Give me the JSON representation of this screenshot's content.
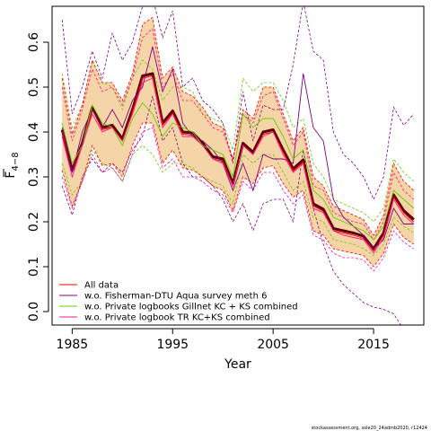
{
  "chart_data": {
    "type": "line",
    "xlabel": "Year",
    "ylabel_main": "F",
    "ylabel_sub": "4−8",
    "xlim": [
      1983,
      2020
    ],
    "ylim": [
      -0.03,
      0.68
    ],
    "xticks": [
      1985,
      1995,
      2005,
      2015
    ],
    "yticks": [
      0.0,
      0.1,
      0.2,
      0.3,
      0.4,
      0.5,
      0.6
    ],
    "ytick_labels": [
      "0.0",
      "0.1",
      "0.2",
      "0.3",
      "0.4",
      "0.5",
      "0.6"
    ],
    "x": [
      1984,
      1985,
      1986,
      1987,
      1988,
      1989,
      1990,
      1991,
      1992,
      1993,
      1994,
      1995,
      1996,
      1997,
      1998,
      1999,
      2000,
      2001,
      2002,
      2003,
      2004,
      2005,
      2006,
      2007,
      2008,
      2009,
      2010,
      2011,
      2012,
      2013,
      2014,
      2015,
      2016,
      2017,
      2018,
      2019
    ],
    "estimate": [
      0.405,
      0.315,
      0.375,
      0.455,
      0.41,
      0.415,
      0.385,
      0.45,
      0.525,
      0.53,
      0.42,
      0.447,
      0.4,
      0.398,
      0.375,
      0.345,
      0.34,
      0.285,
      0.375,
      0.355,
      0.4,
      0.405,
      0.36,
      0.318,
      0.338,
      0.24,
      0.228,
      0.185,
      0.18,
      0.175,
      0.168,
      0.14,
      0.175,
      0.26,
      0.225,
      0.205
    ],
    "ci_upper": [
      0.52,
      0.395,
      0.46,
      0.56,
      0.51,
      0.51,
      0.47,
      0.53,
      0.64,
      0.655,
      0.52,
      0.545,
      0.49,
      0.48,
      0.455,
      0.42,
      0.41,
      0.34,
      0.45,
      0.43,
      0.5,
      0.5,
      0.44,
      0.38,
      0.41,
      0.3,
      0.28,
      0.235,
      0.225,
      0.215,
      0.205,
      0.17,
      0.215,
      0.33,
      0.29,
      0.27
    ],
    "ci_lower": [
      0.315,
      0.235,
      0.29,
      0.37,
      0.325,
      0.33,
      0.3,
      0.37,
      0.42,
      0.42,
      0.33,
      0.36,
      0.32,
      0.315,
      0.3,
      0.28,
      0.27,
      0.225,
      0.3,
      0.285,
      0.32,
      0.325,
      0.285,
      0.255,
      0.27,
      0.18,
      0.17,
      0.14,
      0.135,
      0.13,
      0.125,
      0.1,
      0.13,
      0.195,
      0.165,
      0.15
    ],
    "series": [
      {
        "name": "All data",
        "color": "#ff0000",
        "values": [
          0.4,
          0.312,
          0.37,
          0.45,
          0.405,
          0.41,
          0.38,
          0.445,
          0.52,
          0.525,
          0.415,
          0.442,
          0.395,
          0.393,
          0.37,
          0.34,
          0.335,
          0.28,
          0.37,
          0.35,
          0.395,
          0.4,
          0.355,
          0.313,
          0.333,
          0.235,
          0.223,
          0.18,
          0.175,
          0.17,
          0.163,
          0.135,
          0.17,
          0.255,
          0.22,
          0.2
        ]
      },
      {
        "name": "w.o. Fisherman-DTU Aqua survey meth 6",
        "color": "#800080",
        "values": [
          0.41,
          0.31,
          0.4,
          0.45,
          0.41,
          0.45,
          0.41,
          0.47,
          0.5,
          0.59,
          0.49,
          0.54,
          0.42,
          0.39,
          0.38,
          0.36,
          0.33,
          0.27,
          0.33,
          0.27,
          0.35,
          0.34,
          0.34,
          0.33,
          0.53,
          0.41,
          0.38,
          0.25,
          0.21,
          0.19,
          0.17,
          0.14,
          0.16,
          0.23,
          0.195,
          0.195
        ]
      },
      {
        "name": "w.o. Private logbooks Gillnet KC + KS combined",
        "color": "#66cc00",
        "values": [
          0.42,
          0.33,
          0.37,
          0.46,
          0.42,
          0.41,
          0.37,
          0.43,
          0.465,
          0.44,
          0.39,
          0.42,
          0.41,
          0.4,
          0.37,
          0.36,
          0.35,
          0.3,
          0.44,
          0.41,
          0.43,
          0.43,
          0.39,
          0.34,
          0.36,
          0.27,
          0.25,
          0.21,
          0.2,
          0.19,
          0.18,
          0.16,
          0.19,
          0.27,
          0.25,
          0.23
        ]
      },
      {
        "name": "w.o. Private logbook TR KC+KS combined",
        "color": "#ff1493",
        "values": [
          0.39,
          0.3,
          0.37,
          0.44,
          0.4,
          0.41,
          0.38,
          0.44,
          0.51,
          0.52,
          0.41,
          0.44,
          0.39,
          0.39,
          0.37,
          0.34,
          0.33,
          0.28,
          0.37,
          0.35,
          0.39,
          0.4,
          0.35,
          0.31,
          0.33,
          0.23,
          0.22,
          0.18,
          0.17,
          0.165,
          0.16,
          0.13,
          0.165,
          0.25,
          0.215,
          0.195
        ]
      }
    ],
    "bands": [
      {
        "series": 1,
        "color": "#800080",
        "upper": [
          0.65,
          0.44,
          0.5,
          0.58,
          0.52,
          0.62,
          0.56,
          0.6,
          0.68,
          0.7,
          0.61,
          0.67,
          0.5,
          0.52,
          0.47,
          0.45,
          0.42,
          0.33,
          0.49,
          0.38,
          0.46,
          0.45,
          0.45,
          0.55,
          0.69,
          0.58,
          0.56,
          0.4,
          0.35,
          0.33,
          0.3,
          0.25,
          0.3,
          0.455,
          0.415,
          0.44
        ],
        "lower": [
          0.28,
          0.215,
          0.3,
          0.34,
          0.31,
          0.33,
          0.31,
          0.36,
          0.39,
          0.48,
          0.38,
          0.41,
          0.33,
          0.3,
          0.3,
          0.28,
          0.25,
          0.2,
          0.24,
          0.18,
          0.24,
          0.25,
          0.25,
          0.2,
          0.36,
          0.23,
          0.15,
          0.09,
          0.06,
          0.04,
          0.02,
          0.01,
          0.005,
          -0.005,
          -0.04,
          -0.06
        ]
      },
      {
        "series": 2,
        "color": "#66cc00",
        "upper": [
          0.53,
          0.41,
          0.46,
          0.56,
          0.51,
          0.5,
          0.45,
          0.52,
          0.56,
          0.54,
          0.47,
          0.5,
          0.5,
          0.49,
          0.44,
          0.43,
          0.42,
          0.36,
          0.52,
          0.49,
          0.51,
          0.51,
          0.47,
          0.41,
          0.43,
          0.33,
          0.3,
          0.25,
          0.24,
          0.23,
          0.22,
          0.2,
          0.23,
          0.34,
          0.31,
          0.29
        ],
        "lower": [
          0.33,
          0.26,
          0.29,
          0.36,
          0.33,
          0.32,
          0.29,
          0.35,
          0.37,
          0.35,
          0.31,
          0.33,
          0.33,
          0.32,
          0.3,
          0.29,
          0.28,
          0.24,
          0.35,
          0.33,
          0.35,
          0.35,
          0.31,
          0.27,
          0.29,
          0.21,
          0.2,
          0.16,
          0.155,
          0.15,
          0.14,
          0.125,
          0.15,
          0.21,
          0.19,
          0.175
        ]
      },
      {
        "series": 3,
        "color": "#ff1493",
        "upper": [
          0.5,
          0.38,
          0.45,
          0.54,
          0.49,
          0.5,
          0.46,
          0.52,
          0.61,
          0.63,
          0.5,
          0.53,
          0.47,
          0.47,
          0.44,
          0.41,
          0.4,
          0.34,
          0.44,
          0.42,
          0.48,
          0.49,
          0.43,
          0.37,
          0.4,
          0.28,
          0.27,
          0.22,
          0.21,
          0.2,
          0.195,
          0.16,
          0.2,
          0.31,
          0.27,
          0.25
        ],
        "lower": [
          0.3,
          0.23,
          0.29,
          0.35,
          0.31,
          0.32,
          0.29,
          0.35,
          0.4,
          0.41,
          0.32,
          0.34,
          0.3,
          0.3,
          0.29,
          0.27,
          0.26,
          0.22,
          0.29,
          0.27,
          0.31,
          0.31,
          0.27,
          0.24,
          0.26,
          0.17,
          0.16,
          0.13,
          0.12,
          0.12,
          0.115,
          0.09,
          0.12,
          0.18,
          0.155,
          0.14
        ]
      }
    ],
    "legend_position": "bottom-left",
    "grid": false,
    "band_fill_color": "#f5d5a8",
    "estimate_color": "#5a0000",
    "ci_line_color": "#ff0000"
  },
  "credit": "stockassessment.org, sole20_24admb2020, r12424"
}
